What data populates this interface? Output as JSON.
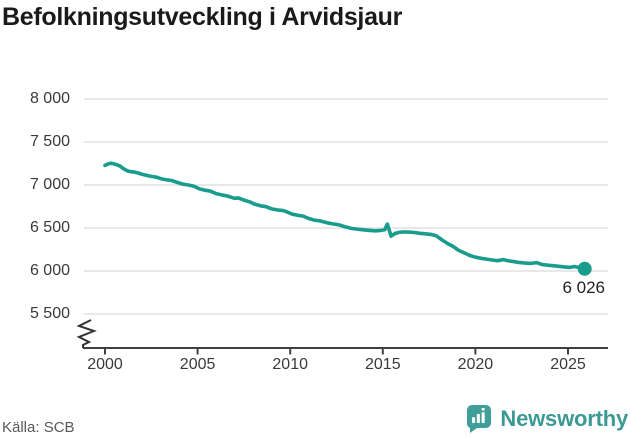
{
  "title": "Befolkningsutveckling i Arvidsjaur",
  "source": "Källa: SCB",
  "branding": {
    "name": "Newsworthy",
    "icon": "newsworthy-chart-bubble-icon",
    "icon_color": "#3f9e97",
    "text_color": "#3b9a94"
  },
  "colors": {
    "line": "#1a9c8c",
    "end_dot": "#1a9c8c",
    "grid": "#e0e0e0",
    "axis": "#404040",
    "axis_break": "#333333",
    "title_text": "#1a1a1a",
    "tick_text": "#3a3a3a",
    "end_label_text": "#222222",
    "source_text": "#595959",
    "background": "#ffffff"
  },
  "chart_data": {
    "type": "line",
    "title": "Befolkningsutveckling i Arvidsjaur",
    "series_name": "Befolkning i Arvidsjaur",
    "xlabel": "",
    "ylabel": "",
    "grid": "horizontal",
    "legend": "none",
    "y_axis": {
      "ticks": [
        8000,
        7500,
        7000,
        6500,
        6000,
        5500
      ],
      "tick_labels": [
        "8 000",
        "7 500",
        "7 000",
        "6 500",
        "6 000",
        "5 500"
      ],
      "range_shown": [
        5500,
        8000
      ],
      "axis_break_at_bottom": true
    },
    "x_axis": {
      "ticks": [
        2000,
        2005,
        2010,
        2015,
        2020,
        2025
      ],
      "tick_labels": [
        "2000",
        "2005",
        "2010",
        "2015",
        "2020",
        "2025"
      ],
      "range": [
        2000,
        2026
      ]
    },
    "end_point": {
      "x": 2025.9,
      "value": 6026,
      "label": "6 026"
    },
    "points": [
      [
        2000.0,
        7228
      ],
      [
        2000.15,
        7243
      ],
      [
        2000.3,
        7253
      ],
      [
        2000.45,
        7248
      ],
      [
        2000.6,
        7240
      ],
      [
        2000.8,
        7222
      ],
      [
        2001.0,
        7190
      ],
      [
        2001.2,
        7165
      ],
      [
        2001.4,
        7155
      ],
      [
        2001.6,
        7150
      ],
      [
        2001.8,
        7140
      ],
      [
        2002.0,
        7125
      ],
      [
        2002.2,
        7115
      ],
      [
        2002.4,
        7105
      ],
      [
        2002.6,
        7098
      ],
      [
        2002.8,
        7090
      ],
      [
        2003.0,
        7075
      ],
      [
        2003.3,
        7060
      ],
      [
        2003.6,
        7052
      ],
      [
        2003.9,
        7030
      ],
      [
        2004.2,
        7010
      ],
      [
        2004.5,
        7000
      ],
      [
        2004.8,
        6985
      ],
      [
        2005.1,
        6955
      ],
      [
        2005.4,
        6940
      ],
      [
        2005.7,
        6928
      ],
      [
        2006.0,
        6900
      ],
      [
        2006.3,
        6885
      ],
      [
        2006.6,
        6872
      ],
      [
        2007.0,
        6845
      ],
      [
        2007.2,
        6850
      ],
      [
        2007.5,
        6825
      ],
      [
        2007.8,
        6805
      ],
      [
        2008.1,
        6775
      ],
      [
        2008.4,
        6758
      ],
      [
        2008.7,
        6748
      ],
      [
        2009.0,
        6722
      ],
      [
        2009.3,
        6710
      ],
      [
        2009.6,
        6703
      ],
      [
        2009.8,
        6690
      ],
      [
        2010.1,
        6662
      ],
      [
        2010.4,
        6648
      ],
      [
        2010.7,
        6638
      ],
      [
        2011.0,
        6610
      ],
      [
        2011.3,
        6592
      ],
      [
        2011.6,
        6583
      ],
      [
        2012.0,
        6560
      ],
      [
        2012.3,
        6548
      ],
      [
        2012.6,
        6538
      ],
      [
        2013.0,
        6512
      ],
      [
        2013.3,
        6495
      ],
      [
        2013.6,
        6487
      ],
      [
        2014.0,
        6478
      ],
      [
        2014.3,
        6472
      ],
      [
        2014.6,
        6468
      ],
      [
        2014.9,
        6472
      ],
      [
        2015.1,
        6480
      ],
      [
        2015.25,
        6545
      ],
      [
        2015.45,
        6405
      ],
      [
        2015.65,
        6435
      ],
      [
        2015.85,
        6448
      ],
      [
        2016.1,
        6455
      ],
      [
        2016.4,
        6452
      ],
      [
        2016.7,
        6448
      ],
      [
        2017.0,
        6438
      ],
      [
        2017.3,
        6432
      ],
      [
        2017.6,
        6425
      ],
      [
        2017.9,
        6408
      ],
      [
        2018.2,
        6360
      ],
      [
        2018.5,
        6320
      ],
      [
        2018.8,
        6285
      ],
      [
        2019.1,
        6240
      ],
      [
        2019.4,
        6210
      ],
      [
        2019.7,
        6180
      ],
      [
        2020.0,
        6160
      ],
      [
        2020.3,
        6148
      ],
      [
        2020.6,
        6138
      ],
      [
        2020.9,
        6128
      ],
      [
        2021.2,
        6120
      ],
      [
        2021.5,
        6132
      ],
      [
        2021.8,
        6118
      ],
      [
        2022.1,
        6108
      ],
      [
        2022.4,
        6098
      ],
      [
        2022.7,
        6092
      ],
      [
        2023.0,
        6088
      ],
      [
        2023.3,
        6098
      ],
      [
        2023.6,
        6076
      ],
      [
        2023.9,
        6068
      ],
      [
        2024.2,
        6062
      ],
      [
        2024.5,
        6055
      ],
      [
        2024.8,
        6048
      ],
      [
        2025.1,
        6042
      ],
      [
        2025.35,
        6052
      ],
      [
        2025.6,
        6040
      ],
      [
        2025.75,
        6032
      ],
      [
        2025.9,
        6026
      ]
    ]
  }
}
